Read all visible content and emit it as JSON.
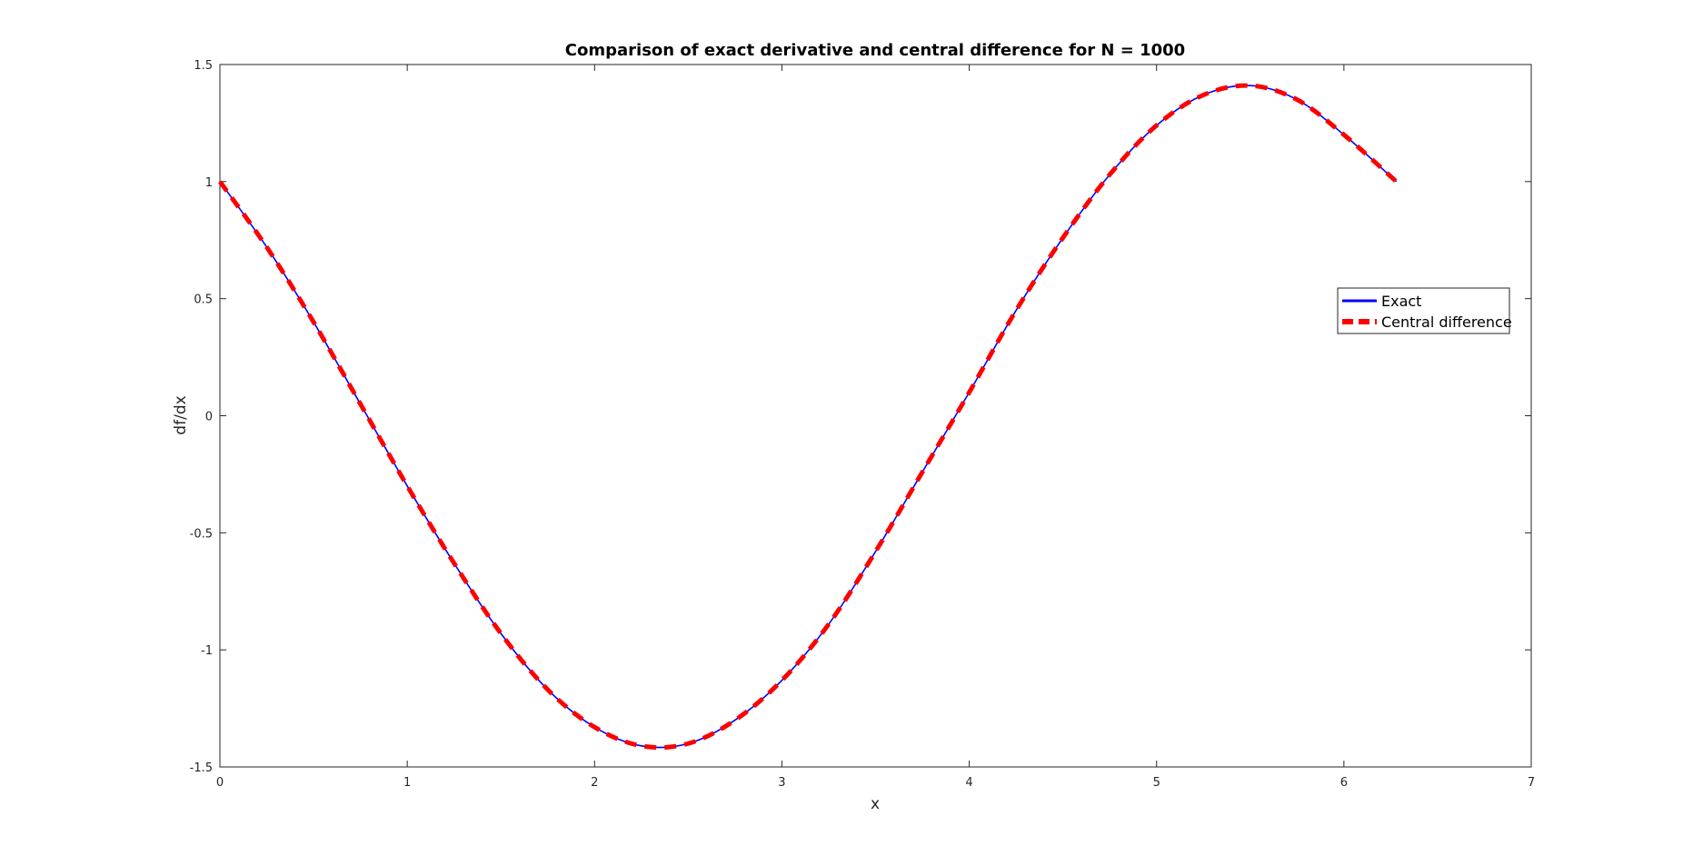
{
  "chart_data": {
    "type": "line",
    "title": "Comparison of exact derivative and central difference for N = 1000",
    "xlabel": "x",
    "ylabel": "df/dx",
    "xlim": [
      0,
      7
    ],
    "ylim": [
      -1.5,
      1.5
    ],
    "xticks": [
      0,
      1,
      2,
      3,
      4,
      5,
      6,
      7
    ],
    "xtick_labels": [
      "0",
      "1",
      "2",
      "3",
      "4",
      "5",
      "6",
      "7"
    ],
    "yticks": [
      -1.5,
      -1,
      -0.5,
      0,
      0.5,
      1,
      1.5
    ],
    "ytick_labels": [
      "-1.5",
      "-1",
      "-0.5",
      "0",
      "0.5",
      "1",
      "1.5"
    ],
    "grid": false,
    "legend_position": "east",
    "series": [
      {
        "name": "Exact",
        "color": "#0000ff",
        "style": "solid",
        "x": [
          0,
          0.25,
          0.5,
          0.75,
          1.0,
          1.25,
          1.5,
          1.75,
          2.0,
          2.25,
          2.5,
          2.75,
          3.0,
          3.25,
          3.5,
          3.75,
          4.0,
          4.25,
          4.5,
          4.75,
          5.0,
          5.25,
          5.5,
          5.75,
          6.0,
          6.28
        ],
        "y": [
          1.0,
          0.72,
          0.4,
          0.05,
          -0.3,
          -0.63,
          -0.93,
          -1.17,
          -1.33,
          -1.41,
          -1.4,
          -1.3,
          -1.13,
          -0.89,
          -0.58,
          -0.24,
          0.1,
          0.45,
          0.76,
          1.03,
          1.24,
          1.37,
          1.41,
          1.35,
          1.2,
          1.0
        ]
      },
      {
        "name": "Central difference",
        "color": "#ff0000",
        "style": "dashed",
        "x": [
          0,
          0.25,
          0.5,
          0.75,
          1.0,
          1.25,
          1.5,
          1.75,
          2.0,
          2.25,
          2.5,
          2.75,
          3.0,
          3.25,
          3.5,
          3.75,
          4.0,
          4.25,
          4.5,
          4.75,
          5.0,
          5.25,
          5.5,
          5.75,
          6.0,
          6.28
        ],
        "y": [
          1.0,
          0.72,
          0.4,
          0.05,
          -0.3,
          -0.63,
          -0.93,
          -1.17,
          -1.33,
          -1.41,
          -1.4,
          -1.3,
          -1.13,
          -0.89,
          -0.58,
          -0.24,
          0.1,
          0.45,
          0.76,
          1.03,
          1.24,
          1.37,
          1.41,
          1.35,
          1.2,
          1.0
        ]
      }
    ]
  }
}
